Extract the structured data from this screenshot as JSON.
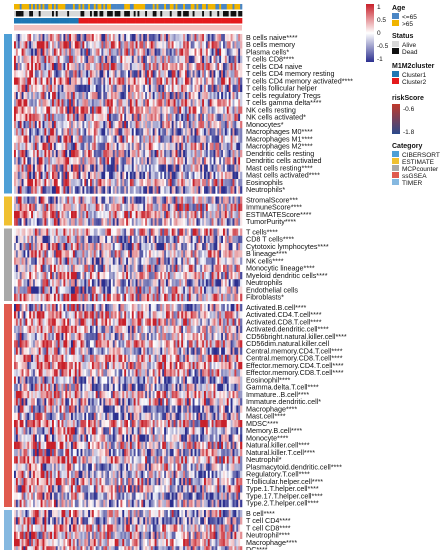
{
  "chart_data": {
    "type": "heatmap",
    "row_groups": [
      {
        "category": "CIBERSORT",
        "rows": [
          "B cells naive****",
          "B cells memory",
          "Plasma cells*",
          "T cells CD8****",
          "T cells CD4 naive",
          "T cells CD4 memory resting",
          "T cells CD4 memory activated****",
          "T cells follicular helper",
          "T cells regulatory  Tregs",
          "T cells gamma delta****",
          "NK cells resting",
          "NK cells activated*",
          "Monocytes*",
          "Macrophages M0****",
          "Macrophages M1****",
          "Macrophages M2****",
          "Dendritic cells resting",
          "Dendritic cells activated",
          "Mast cells resting****",
          "Mast cells activated****",
          "Eosinophils",
          "Neutrophils*"
        ]
      },
      {
        "category": "ESTIMATE",
        "rows": [
          "StromalScore***",
          "ImmuneScore****",
          "ESTIMATEScore****",
          "TumorPurity****"
        ]
      },
      {
        "category": "MCPcounter",
        "rows": [
          "T cells****",
          "CD8 T cells****",
          "Cytotoxic lymphocytes****",
          "B lineage****",
          "NK cells****",
          "Monocytic lineage****",
          "Myeloid dendritic cells****",
          "Neutrophils",
          "Endothelial cells",
          "Fibroblasts*"
        ]
      },
      {
        "category": "ssGSEA",
        "rows": [
          "Activated.B.cell****",
          "Activated.CD4.T.cell****",
          "Activated.CD8.T.cell****",
          "Activated.dendritic.cell****",
          "CD56bright.natural.killer.cell****",
          "CD56dim.natural.killer.cell",
          "Central.memory.CD4.T.cell****",
          "Central.memory.CD8.T.cell****",
          "Effector.memory.CD4.T.cell****",
          "Effector.memory.CD8.T.cell****",
          "Eosinophil****",
          "Gamma.delta.T.cell****",
          "Immature..B.cell****",
          "Immature.dendritic.cell*",
          "Macrophage****",
          "Mast.cell****",
          "MDSC****",
          "Memory.B.cell****",
          "Monocyte****",
          "Natural.killer.cell****",
          "Natural.killer.T.cell****",
          "Neutrophil*",
          "Plasmacytoid.dendritic.cell****",
          "Regulatory.T.cell****",
          "T.follicular.helper.cell****",
          "Type.1.T.helper.cell****",
          "Type.17.T.helper.cell****",
          "Type.2.T.helper.cell****"
        ]
      },
      {
        "category": "TIMER",
        "rows": [
          "B cell****",
          "T cell CD4****",
          "T cell CD8****",
          "Neutrophil****",
          "Macrophage****",
          "DC****"
        ]
      }
    ],
    "annotation_tracks": [
      "Age",
      "Status",
      "M1M2cluster",
      "riskScore"
    ],
    "color_scale": {
      "min": -1,
      "max": 1,
      "low": "#2b2f8f",
      "mid": "#ffffff",
      "high": "#c8202a"
    },
    "cluster1_fraction": 0.28
  },
  "legend": {
    "scale": {
      "title": "",
      "ticks": [
        "1",
        "0.5",
        "0",
        "-0.5",
        "-1"
      ]
    },
    "age": {
      "title": "Age",
      "items": [
        {
          "label": "<=65",
          "color": "#4a86c5"
        },
        {
          "label": ">65",
          "color": "#f0b400"
        }
      ]
    },
    "status": {
      "title": "Status",
      "items": [
        {
          "label": "Alive",
          "color": "#d9d9d9"
        },
        {
          "label": "Dead",
          "color": "#111111"
        }
      ]
    },
    "m1m2": {
      "title": "M1M2cluster",
      "items": [
        {
          "label": "Cluster1",
          "color": "#1f77b4"
        },
        {
          "label": "Cluster2",
          "color": "#e41a1c"
        }
      ]
    },
    "risk": {
      "title": "riskScore",
      "ticks": [
        "-0.6",
        "-1.8"
      ],
      "high": "#c0392b",
      "low": "#2c4a8c"
    },
    "category": {
      "title": "Category",
      "items": [
        {
          "label": "CIBERSORT",
          "color": "#4e9fd6"
        },
        {
          "label": "ESTIMATE",
          "color": "#f0c030"
        },
        {
          "label": "MCPcounter",
          "color": "#a9a9a9"
        },
        {
          "label": "ssGSEA",
          "color": "#e05a4e"
        },
        {
          "label": "TIMER",
          "color": "#85b8e0"
        }
      ]
    }
  }
}
